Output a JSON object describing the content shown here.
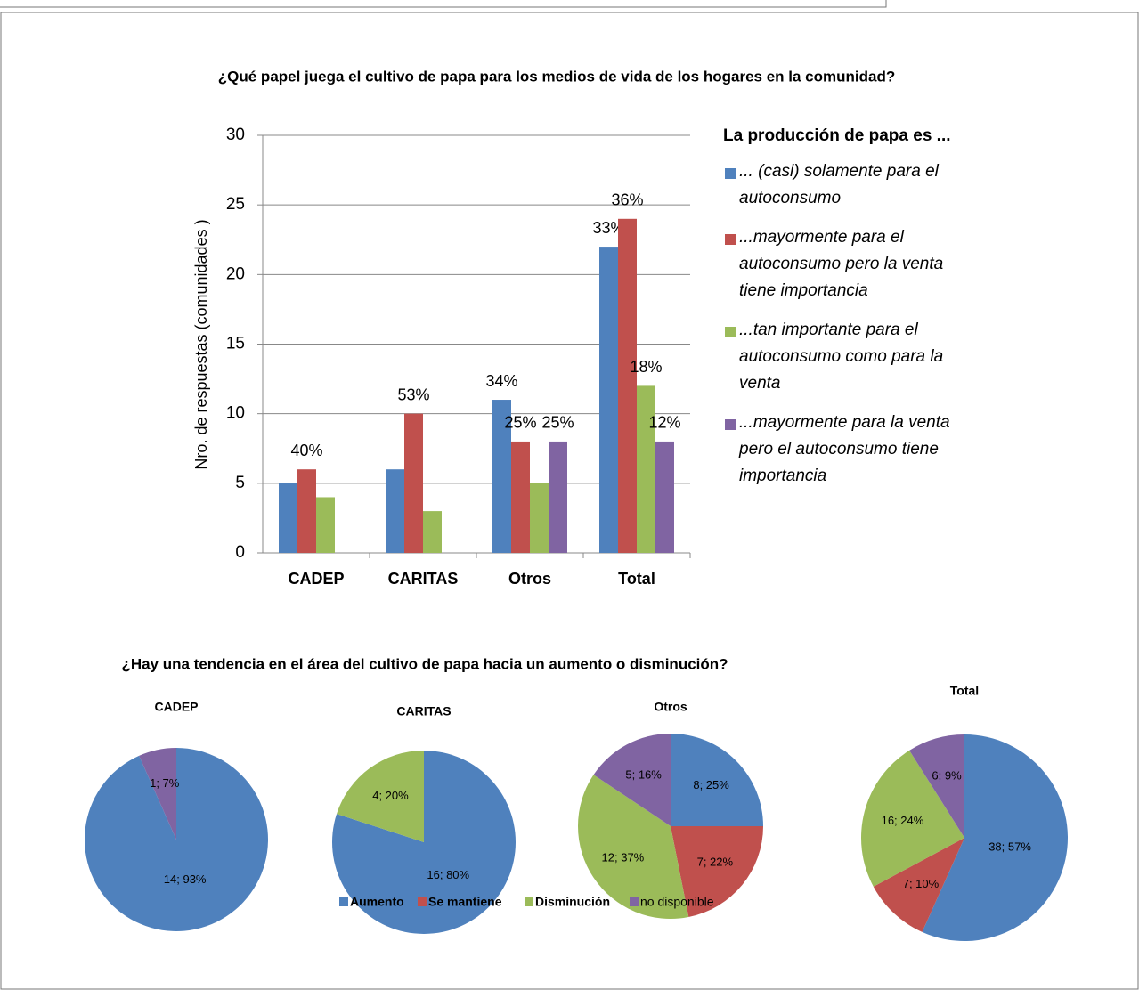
{
  "pies_title": "¿Hay una tendencia en el área del cultivo de papa hacia un aumento o disminución?",
  "chart_data": [
    {
      "type": "bar",
      "title": "¿Qué papel juega el cultivo de papa para los medios de vida de los hogares en la comunidad?",
      "y_label": "Nro. de respuestas (comunidades )",
      "legend_title": "La producción de papa es ...",
      "categories": [
        "CADEP",
        "CARITAS",
        "Otros",
        "Total"
      ],
      "ylim": [
        0,
        30
      ],
      "yticks": [
        0,
        5,
        10,
        15,
        20,
        25,
        30
      ],
      "grid": true,
      "series": [
        {
          "name": "... (casi) solamente para el autoconsumo",
          "color": "#4f81bd",
          "values": [
            5,
            6,
            11,
            22
          ],
          "share_labels": [
            null,
            null,
            "34%",
            "33%"
          ]
        },
        {
          "name": "...mayormente para el autoconsumo pero la venta tiene importancia",
          "color": "#c0504d",
          "values": [
            6,
            10,
            8,
            24
          ],
          "share_labels": [
            "40%",
            "53%",
            "25%",
            "36%"
          ]
        },
        {
          "name": "...tan importante para el autoconsumo como para la venta",
          "color": "#9bbb59",
          "values": [
            4,
            3,
            5,
            12
          ],
          "share_labels": [
            null,
            null,
            null,
            "18%"
          ]
        },
        {
          "name": "...mayormente para la venta pero el autoconsumo tiene importancia",
          "color": "#8064a2",
          "values": [
            0,
            0,
            8,
            8
          ],
          "share_labels": [
            null,
            null,
            "25%",
            "12%"
          ]
        }
      ]
    },
    {
      "type": "pie",
      "title": "CADEP",
      "categories": [
        "Aumento",
        "Se mantiene",
        "Disminución",
        "no disponible"
      ],
      "colors": [
        "#4f81bd",
        "#c0504d",
        "#9bbb59",
        "#8064a2"
      ],
      "values": [
        14,
        0,
        0,
        1
      ],
      "value_labels": [
        "14; 93%",
        null,
        null,
        "1; 7%"
      ]
    },
    {
      "type": "pie",
      "title": "CARITAS",
      "categories": [
        "Aumento",
        "Se mantiene",
        "Disminución",
        "no disponible"
      ],
      "colors": [
        "#4f81bd",
        "#c0504d",
        "#9bbb59",
        "#8064a2"
      ],
      "values": [
        16,
        0,
        4,
        0
      ],
      "value_labels": [
        "16; 80%",
        null,
        "4; 20%",
        null
      ]
    },
    {
      "type": "pie",
      "title": "Otros",
      "categories": [
        "Aumento",
        "Se mantiene",
        "Disminución",
        "no disponible"
      ],
      "colors": [
        "#4f81bd",
        "#c0504d",
        "#9bbb59",
        "#8064a2"
      ],
      "values": [
        8,
        7,
        12,
        5
      ],
      "value_labels": [
        "8; 25%",
        "7; 22%",
        "12; 37%",
        "5; 16%"
      ]
    },
    {
      "type": "pie",
      "title": "Total",
      "categories": [
        "Aumento",
        "Se mantiene",
        "Disminución",
        "no disponible"
      ],
      "colors": [
        "#4f81bd",
        "#c0504d",
        "#9bbb59",
        "#8064a2"
      ],
      "values": [
        38,
        7,
        16,
        6
      ],
      "value_labels": [
        "38; 57%",
        "7; 10%",
        "16; 24%",
        "6; 9%"
      ]
    }
  ]
}
